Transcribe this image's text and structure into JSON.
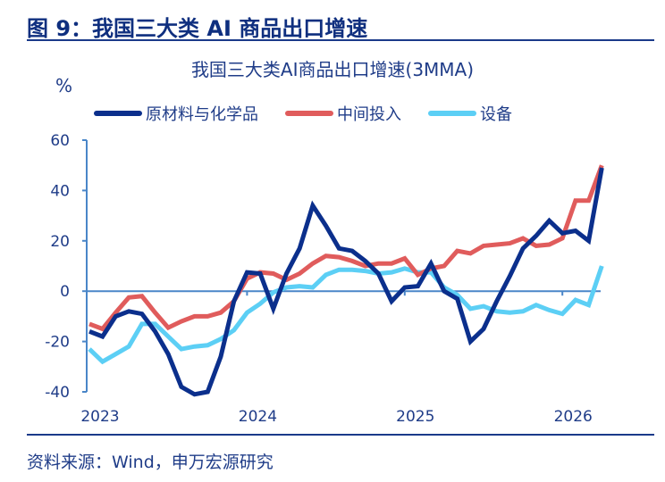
{
  "figure_title": "图 9：我国三大类 AI 商品出口增速",
  "source": "资料来源：Wind，申万宏源研究",
  "chart_data": {
    "type": "line",
    "title": "我国三大类AI商品出口增速(3MMA)",
    "ylabel": "%",
    "xlabel": "",
    "ylim": [
      -40,
      60
    ],
    "yticks": [
      "60",
      "40",
      "20",
      "0",
      "-20",
      "-40"
    ],
    "xticks": [
      "2023",
      "2024",
      "2025",
      "2026"
    ],
    "grid": false,
    "legend": "top",
    "x": [
      "2023-01",
      "2023-02",
      "2023-03",
      "2023-04",
      "2023-05",
      "2023-06",
      "2023-07",
      "2023-08",
      "2023-09",
      "2023-10",
      "2023-11",
      "2023-12",
      "2024-01",
      "2024-02",
      "2024-03",
      "2024-04",
      "2024-05",
      "2024-06",
      "2024-07",
      "2024-08",
      "2024-09",
      "2024-10",
      "2024-11",
      "2024-12",
      "2025-01",
      "2025-02",
      "2025-03",
      "2025-04",
      "2025-05",
      "2025-06",
      "2025-07",
      "2025-08",
      "2025-09",
      "2025-10",
      "2025-11",
      "2025-12",
      "2026-01",
      "2026-02",
      "2026-03",
      "2026-04"
    ],
    "series": [
      {
        "name": "原材料与化学品",
        "color": "#0b2f8c",
        "values": [
          -16,
          -18,
          -10,
          -8,
          -9,
          -16,
          -25,
          -38,
          -41,
          -40,
          -26,
          -4,
          7.5,
          7,
          -7,
          7,
          17,
          34,
          26,
          17,
          16,
          12,
          7,
          -4,
          1.5,
          2,
          11,
          0,
          -3,
          -20,
          -15,
          -4,
          6,
          17,
          22,
          28,
          23,
          24,
          20,
          49
        ]
      },
      {
        "name": "中间投入",
        "color": "#e05c5c",
        "values": [
          -13,
          -15,
          -8.5,
          -2.5,
          -2,
          -8.5,
          -14.5,
          -12,
          -10,
          -10,
          -8.5,
          -4,
          5,
          7.5,
          7,
          4.5,
          7,
          11,
          14,
          13.5,
          12,
          10,
          11,
          11,
          13,
          6.5,
          9,
          10,
          16,
          15,
          18,
          18.5,
          19,
          21,
          18,
          18.5,
          21,
          36,
          36,
          50
        ]
      },
      {
        "name": "设备",
        "color": "#5ccff5",
        "values": [
          -23,
          -28,
          -25,
          -22,
          -13,
          -13,
          -18,
          -23,
          -22,
          -21.5,
          -19,
          -15.5,
          -8.5,
          -5,
          -0.5,
          1.5,
          2,
          1.5,
          6.5,
          8.5,
          8.5,
          8,
          7,
          7.5,
          9,
          7.5,
          7.5,
          1.5,
          -1.5,
          -7,
          -6,
          -8,
          -8.5,
          -8,
          -5.5,
          -7.5,
          -9,
          -3.5,
          -5.5,
          10
        ]
      }
    ]
  }
}
